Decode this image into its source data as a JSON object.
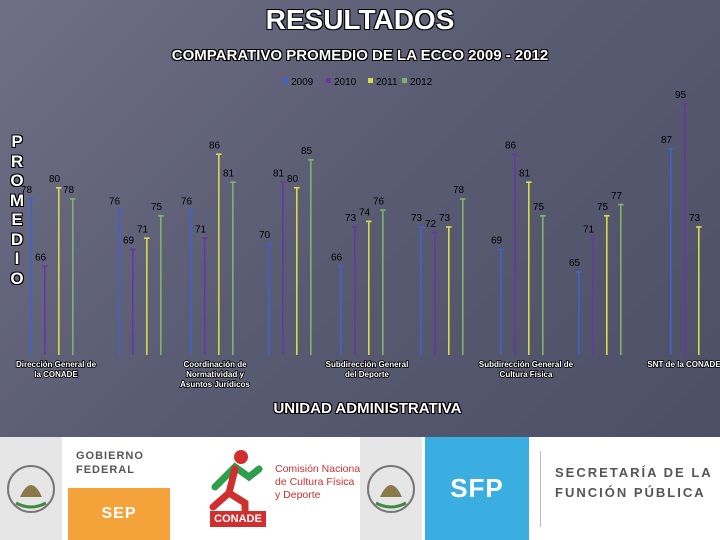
{
  "page": {
    "title": "RESULTADOS",
    "subtitle": "COMPARATIVO PROMEDIO DE LA ECCO 2009 - 2012",
    "y_axis_letters": [
      "P",
      "R",
      "O",
      "M",
      "E",
      "D",
      "I",
      "O"
    ],
    "x_axis_title": "UNIDAD ADMINISTRATIVA"
  },
  "chart_data": {
    "type": "bar",
    "title": "COMPARATIVO PROMEDIO DE LA ECCO 2009 - 2012",
    "xlabel": "UNIDAD ADMINISTRATIVA",
    "ylabel": "PROMEDIO",
    "legend_position": "top-center",
    "grid": false,
    "categories": [
      "Dirección General de la CONADE",
      "Coordinación de Normatividad y Asuntos Jurídicos",
      "Subdirección General del Deporte",
      "Subdirección General de Cultura Física",
      "SNT de la CONADE"
    ],
    "bar_groups": [
      {
        "category_index": 0,
        "values": [
          78,
          66,
          80,
          78
        ]
      },
      {
        "category_index": 0,
        "values": [
          76,
          69,
          71,
          75
        ]
      },
      {
        "category_index": 1,
        "values": [
          76,
          71,
          86,
          81
        ]
      },
      {
        "category_index": 1,
        "values": [
          70,
          81,
          80,
          85
        ]
      },
      {
        "category_index": 2,
        "values": [
          66,
          73,
          74,
          76
        ]
      },
      {
        "category_index": 2,
        "values": [
          73,
          72,
          73,
          78
        ]
      },
      {
        "category_index": 3,
        "values": [
          69,
          86,
          81,
          75
        ]
      },
      {
        "category_index": 3,
        "values": [
          65,
          71,
          75,
          77
        ]
      },
      {
        "category_index": 4,
        "values": [
          87,
          95,
          73
        ]
      }
    ],
    "series": [
      {
        "name": "2009",
        "color": "#3e63c7"
      },
      {
        "name": "2010",
        "color": "#6a35a0"
      },
      {
        "name": "2011",
        "color": "#d9d94a"
      },
      {
        "name": "2012",
        "color": "#7fb36a"
      }
    ]
  },
  "footer": {
    "gobierno_line1": "GOBIERNO",
    "gobierno_line2": "FEDERAL",
    "sep": "SEP",
    "conade_word": "CONADE",
    "conade_line1": "Comisión Nacional",
    "conade_line2": "de Cultura Física",
    "conade_line3": "y Deporte",
    "sfp": "SFP",
    "sfp_line1": "SECRETARÍA DE LA",
    "sfp_line2": "FUNCIÓN PÚBLICA"
  }
}
